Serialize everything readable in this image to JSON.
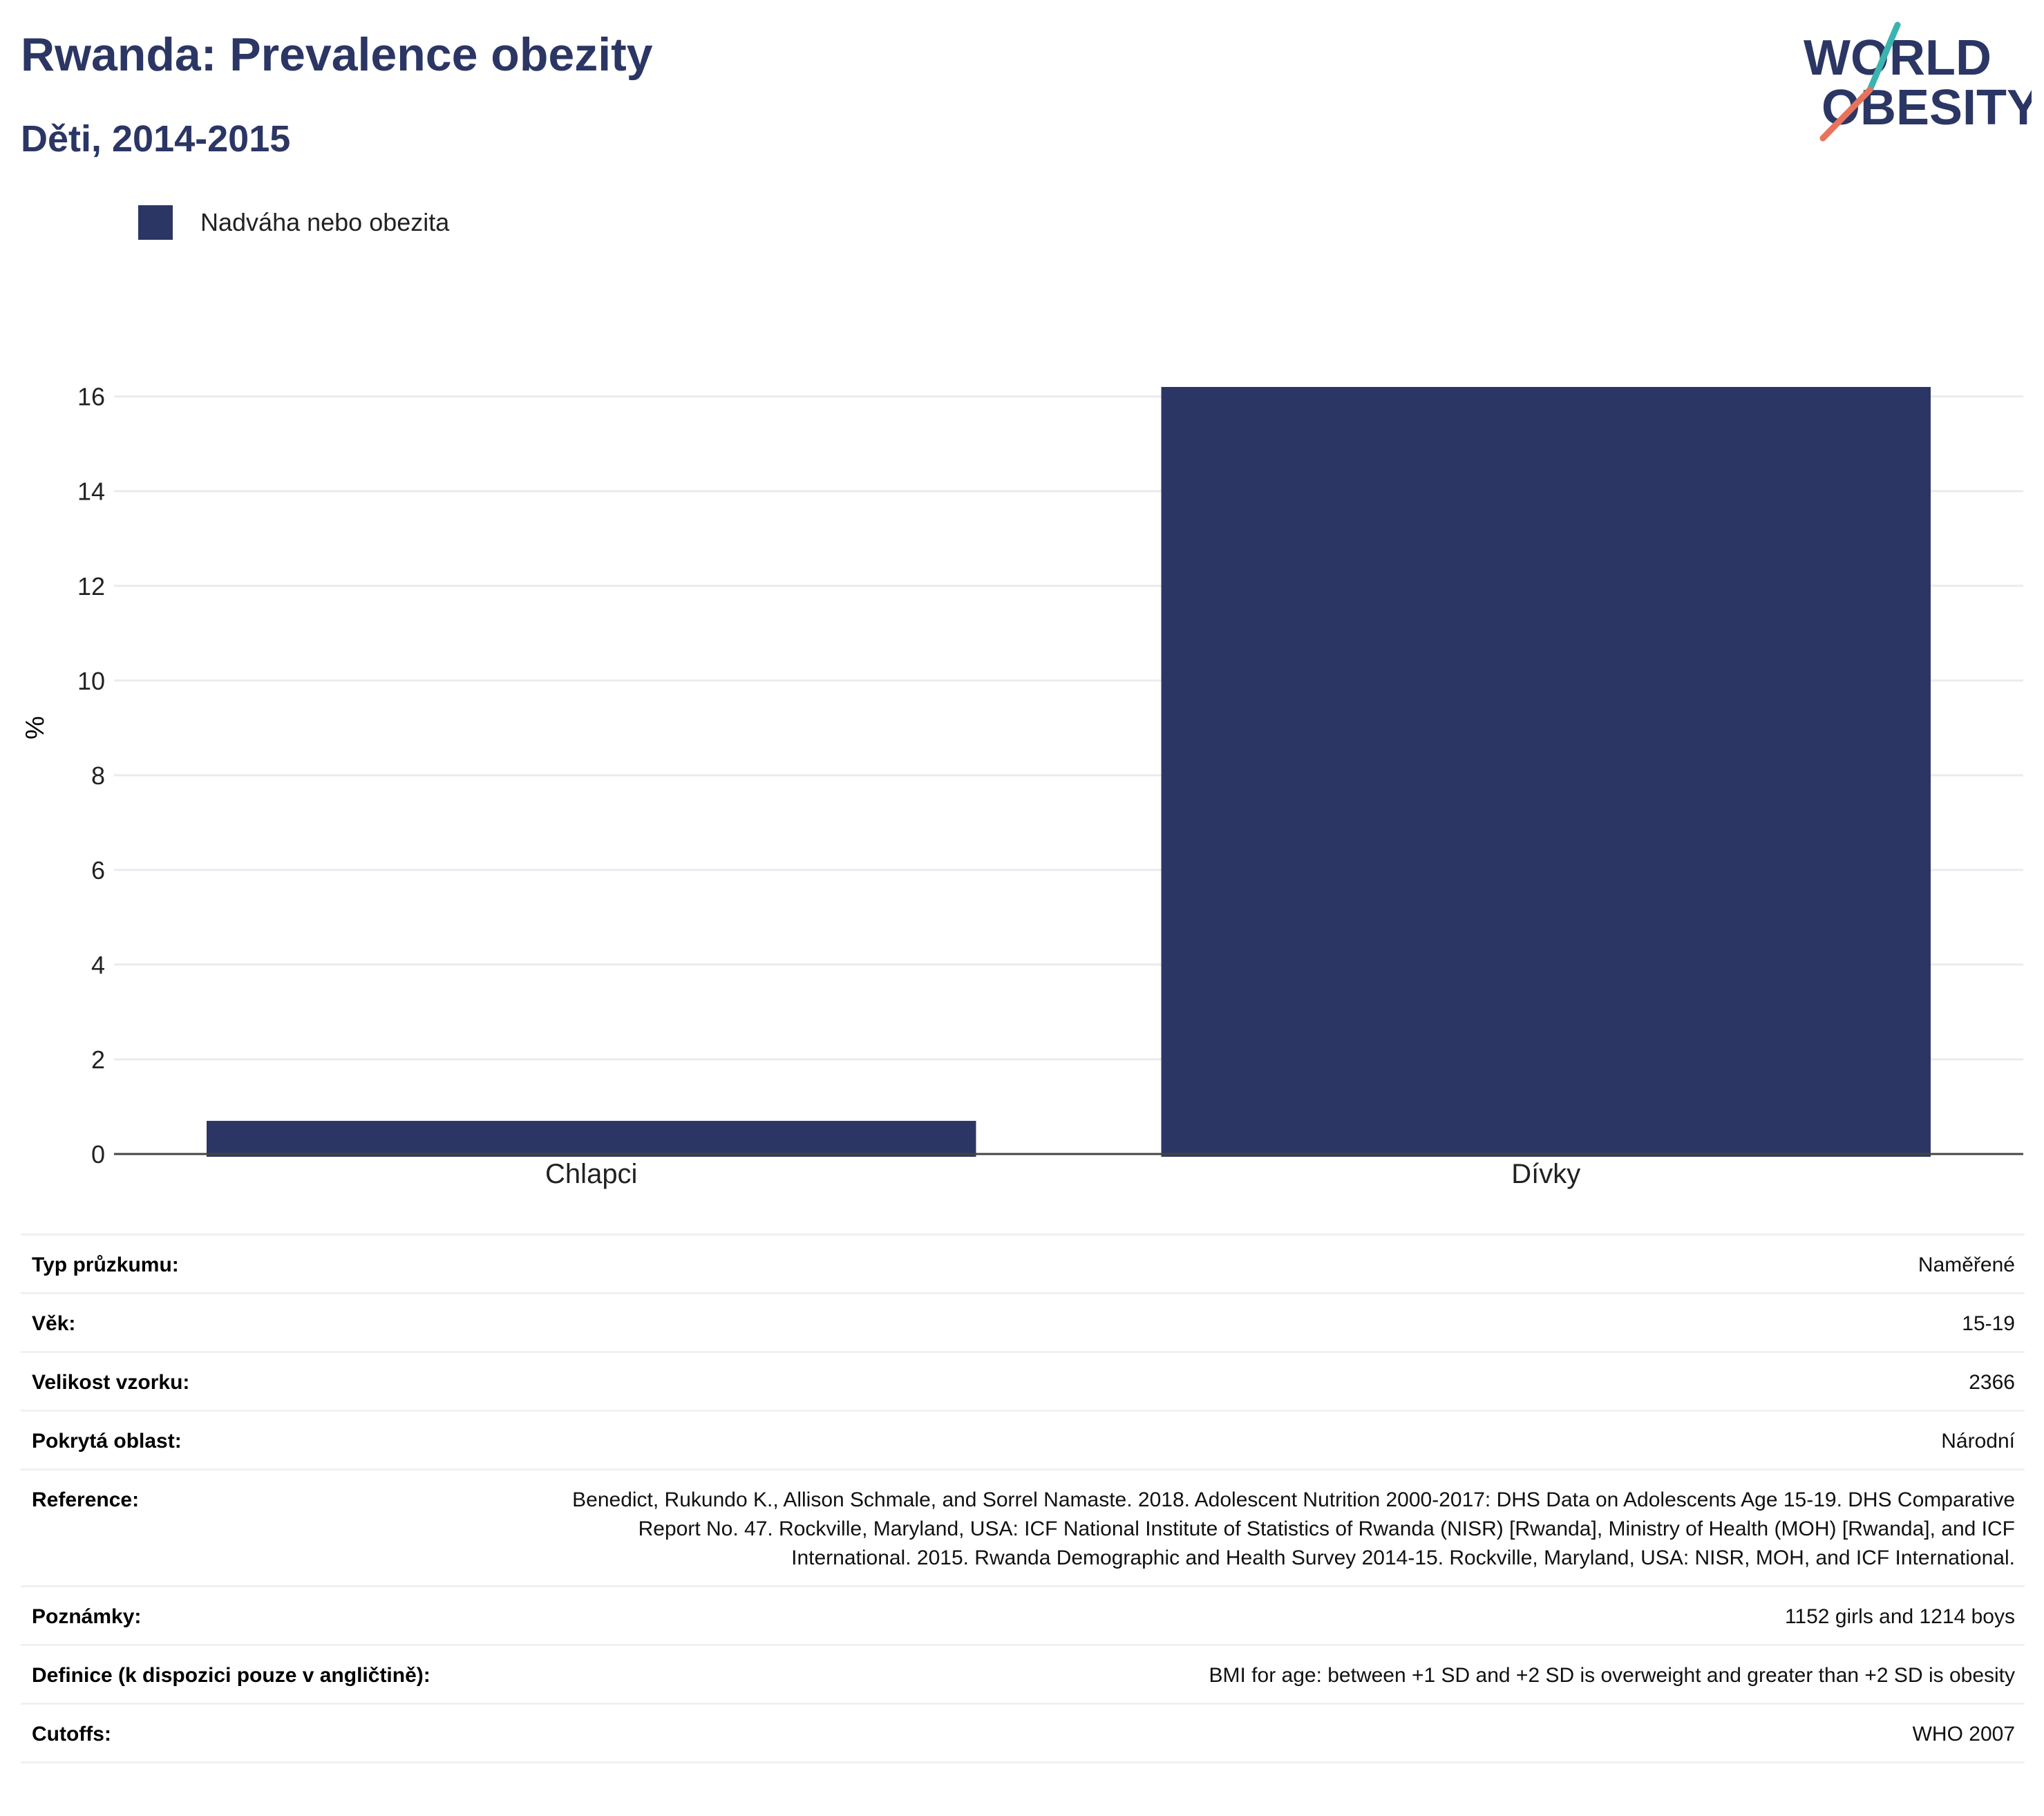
{
  "header": {
    "title": "Rwanda: Prevalence obezity",
    "subtitle": "Děti, 2014-2015"
  },
  "logo": {
    "line1": "WORLD",
    "line2": "OBESITY",
    "icon": "world-obesity-logo"
  },
  "colors": {
    "accent": "#2b3664",
    "teal": "#3bb4b0",
    "coral": "#e8735c",
    "grid": "#e9ebf0"
  },
  "chart_data": {
    "type": "bar",
    "categories": [
      "Chlapci",
      "Dívky"
    ],
    "series": [
      {
        "name": "Nadváha nebo obezita",
        "values": [
          0.7,
          16.2
        ]
      }
    ],
    "ylabel": "%",
    "xlabel": "",
    "ylim": [
      0,
      16.2
    ],
    "yticks": [
      0,
      2,
      4,
      6,
      8,
      10,
      12,
      14,
      16
    ],
    "grid": true,
    "legend": "top-left"
  },
  "info": [
    {
      "label": "Typ průzkumu:",
      "value": "Naměřené"
    },
    {
      "label": "Věk:",
      "value": "15-19"
    },
    {
      "label": "Velikost vzorku:",
      "value": "2366"
    },
    {
      "label": "Pokrytá oblast:",
      "value": "Národní"
    },
    {
      "label": "Reference:",
      "value": "Benedict, Rukundo K., Allison Schmale, and Sorrel Namaste. 2018. Adolescent Nutrition 2000-2017: DHS Data on Adolescents Age 15-19. DHS Comparative Report No. 47. Rockville, Maryland, USA: ICF National Institute of Statistics of Rwanda (NISR) [Rwanda], Ministry of Health (MOH) [Rwanda], and ICF International. 2015. Rwanda Demographic and Health Survey 2014-15. Rockville, Maryland, USA: NISR, MOH, and ICF International."
    },
    {
      "label": "Poznámky:",
      "value": "1152 girls and 1214 boys"
    },
    {
      "label": "Definice (k dispozici pouze v angličtině):",
      "value": "BMI for age: between +1 SD and +2 SD is overweight and greater than +2 SD is obesity"
    },
    {
      "label": "Cutoffs:",
      "value": "WHO 2007"
    }
  ]
}
